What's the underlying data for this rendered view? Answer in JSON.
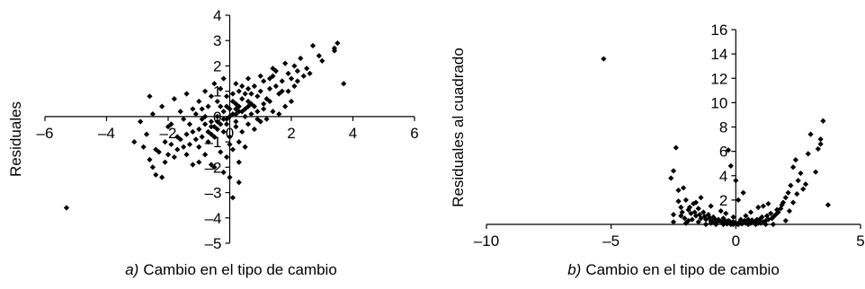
{
  "chart_data": [
    {
      "type": "scatter",
      "panel_prefix": "a)",
      "caption": "Cambio en el tipo de cambio",
      "ylabel": "Residuales",
      "xlim": [
        -6,
        6
      ],
      "ylim": [
        -5,
        4
      ],
      "x_ticks": [
        "–6",
        "–4",
        "–2",
        "0",
        "2",
        "4",
        "6"
      ],
      "y_ticks": [
        "–5",
        "–4",
        "–3",
        "–2",
        "–1",
        "0",
        "1",
        "2",
        "3",
        "4"
      ],
      "grid": false,
      "marker_color": "#000000",
      "points": [
        [
          -5.3,
          -3.6
        ],
        [
          3.7,
          1.3
        ],
        [
          3.5,
          2.9
        ],
        [
          3.4,
          2.6
        ],
        [
          3.4,
          2.7
        ],
        [
          2.7,
          2.8
        ],
        [
          3.0,
          2.2
        ],
        [
          2.3,
          2.3
        ],
        [
          2.5,
          1.9
        ],
        [
          2.2,
          1.8
        ],
        [
          1.8,
          2.1
        ],
        [
          2.0,
          1.5
        ],
        [
          2.4,
          1.6
        ],
        [
          2.1,
          1.2
        ],
        [
          1.7,
          1.4
        ],
        [
          1.5,
          1.8
        ],
        [
          1.9,
          1.0
        ],
        [
          1.3,
          1.1
        ],
        [
          1.4,
          1.6
        ],
        [
          1.6,
          0.9
        ],
        [
          1.2,
          0.7
        ],
        [
          1.0,
          1.0
        ],
        [
          1.1,
          0.5
        ],
        [
          0.9,
          0.8
        ],
        [
          0.8,
          0.4
        ],
        [
          0.7,
          0.9
        ],
        [
          0.6,
          0.6
        ],
        [
          0.5,
          0.3
        ],
        [
          0.4,
          0.7
        ],
        [
          0.3,
          0.2
        ],
        [
          0.2,
          0.5
        ],
        [
          0.1,
          0.1
        ],
        [
          0.0,
          0.3
        ],
        [
          -0.1,
          -0.1
        ],
        [
          -0.2,
          0.2
        ],
        [
          -0.3,
          -0.3
        ],
        [
          -0.4,
          0.0
        ],
        [
          -0.5,
          -0.4
        ],
        [
          -0.6,
          -0.2
        ],
        [
          -0.7,
          -0.6
        ],
        [
          -0.8,
          -0.3
        ],
        [
          -0.9,
          -0.8
        ],
        [
          -1.0,
          -0.5
        ],
        [
          -1.1,
          -0.9
        ],
        [
          -1.2,
          -0.6
        ],
        [
          -1.3,
          -1.1
        ],
        [
          -1.4,
          -0.7
        ],
        [
          -1.5,
          -1.2
        ],
        [
          -1.6,
          -0.9
        ],
        [
          -1.7,
          -1.3
        ],
        [
          -1.8,
          -1.6
        ],
        [
          -1.9,
          -1.1
        ],
        [
          -2.0,
          -1.5
        ],
        [
          -2.1,
          -1.8
        ],
        [
          -2.3,
          -1.4
        ],
        [
          -2.4,
          -2.3
        ],
        [
          -2.5,
          -2.0
        ],
        [
          -2.2,
          -2.4
        ],
        [
          -2.6,
          -1.7
        ],
        [
          -0.3,
          1.1
        ],
        [
          -0.5,
          1.3
        ],
        [
          -0.8,
          1.0
        ],
        [
          -0.2,
          1.5
        ],
        [
          0.2,
          1.3
        ],
        [
          0.4,
          1.2
        ],
        [
          -0.6,
          0.8
        ],
        [
          -1.0,
          0.6
        ],
        [
          -1.2,
          0.3
        ],
        [
          -1.4,
          0.9
        ],
        [
          -1.8,
          0.7
        ],
        [
          -1.6,
          0.2
        ],
        [
          -2.2,
          0.4
        ],
        [
          -2.5,
          0.1
        ],
        [
          -2.7,
          -0.7
        ],
        [
          -2.8,
          -1.2
        ],
        [
          -2.0,
          -0.4
        ],
        [
          -1.5,
          -0.1
        ],
        [
          -1.1,
          0.1
        ],
        [
          -0.9,
          -0.1
        ],
        [
          0.2,
          -0.4
        ],
        [
          0.4,
          -0.6
        ],
        [
          0.6,
          -0.3
        ],
        [
          0.8,
          -0.5
        ],
        [
          1.0,
          -0.2
        ],
        [
          1.2,
          -0.1
        ],
        [
          1.4,
          0.2
        ],
        [
          1.6,
          0.1
        ],
        [
          1.8,
          0.4
        ],
        [
          2.0,
          0.6
        ],
        [
          0.3,
          -1.0
        ],
        [
          0.1,
          -1.3
        ],
        [
          -0.1,
          -1.6
        ],
        [
          0.0,
          -2.4
        ],
        [
          -0.2,
          -2.2
        ],
        [
          0.1,
          -3.2
        ],
        [
          0.3,
          -1.8
        ],
        [
          0.5,
          -1.2
        ],
        [
          -0.3,
          -1.4
        ],
        [
          -0.6,
          -1.9
        ],
        [
          -0.8,
          -1.5
        ],
        [
          -1.0,
          -1.8
        ],
        [
          -1.2,
          -1.9
        ],
        [
          0.7,
          0.1
        ],
        [
          0.9,
          0.2
        ],
        [
          -0.4,
          0.6
        ],
        [
          -0.1,
          0.8
        ],
        [
          0.1,
          0.9
        ],
        [
          0.3,
          1.0
        ],
        [
          0.5,
          0.9
        ],
        [
          -0.7,
          0.4
        ],
        [
          -0.9,
          0.3
        ],
        [
          -0.2,
          -0.6
        ],
        [
          0.0,
          -0.8
        ],
        [
          0.2,
          -0.2
        ],
        [
          -0.3,
          0.4
        ],
        [
          0.6,
          1.1
        ],
        [
          0.8,
          1.2
        ],
        [
          1.1,
          1.4
        ],
        [
          1.3,
          1.5
        ],
        [
          1.5,
          1.2
        ],
        [
          1.7,
          1.0
        ],
        [
          2.2,
          1.4
        ],
        [
          2.6,
          1.7
        ],
        [
          2.9,
          2.4
        ],
        [
          1.9,
          1.7
        ],
        [
          2.1,
          2.0
        ],
        [
          -1.3,
          -0.3
        ],
        [
          -1.7,
          -0.8
        ],
        [
          -2.1,
          -1.0
        ],
        [
          -2.4,
          -1.3
        ],
        [
          -1.9,
          -0.3
        ],
        [
          -1.4,
          -1.5
        ],
        [
          -1.0,
          -1.2
        ],
        [
          -0.7,
          -1.0
        ],
        [
          -0.5,
          -0.8
        ],
        [
          0.9,
          -0.1
        ],
        [
          1.1,
          0.3
        ],
        [
          1.3,
          0.6
        ],
        [
          0.7,
          0.5
        ],
        [
          0.5,
          0.0
        ],
        [
          0.3,
          0.4
        ],
        [
          0.1,
          0.6
        ],
        [
          -0.1,
          0.4
        ],
        [
          -0.4,
          -0.5
        ],
        [
          -0.6,
          -0.7
        ],
        [
          -0.8,
          0.0
        ],
        [
          0.0,
          0.0
        ],
        [
          0.2,
          0.3
        ],
        [
          -0.2,
          -0.1
        ],
        [
          0.4,
          0.2
        ],
        [
          -0.4,
          -0.2
        ],
        [
          0.6,
          0.4
        ],
        [
          -0.6,
          -0.4
        ],
        [
          1.4,
          1.9
        ],
        [
          1.0,
          1.6
        ],
        [
          0.6,
          1.5
        ],
        [
          -2.6,
          0.8
        ],
        [
          -2.9,
          -0.2
        ],
        [
          -3.1,
          -1.0
        ],
        [
          0.3,
          -2.6
        ],
        [
          -0.5,
          -2.0
        ],
        [
          0.0,
          -1.1
        ],
        [
          -0.1,
          -0.3
        ],
        [
          0.2,
          0.1
        ]
      ]
    },
    {
      "type": "scatter",
      "panel_prefix": "b)",
      "caption": "Cambio en el tipo de cambio",
      "ylabel": "Residuales al cuadrado",
      "xlim": [
        -10,
        5
      ],
      "ylim": [
        0,
        16
      ],
      "x_ticks": [
        "–10",
        "–5",
        "0",
        "5"
      ],
      "y_ticks": [
        "2",
        "4",
        "6",
        "8",
        "10",
        "12",
        "14",
        "16"
      ],
      "grid": false,
      "marker_color": "#000000",
      "points": [
        [
          -5.3,
          13.6
        ],
        [
          3.5,
          8.5
        ],
        [
          3.4,
          7.0
        ],
        [
          3.4,
          6.6
        ],
        [
          3.0,
          7.4
        ],
        [
          3.2,
          4.3
        ],
        [
          3.7,
          1.6
        ],
        [
          2.6,
          4.2
        ],
        [
          2.5,
          3.6
        ],
        [
          2.4,
          5.3
        ],
        [
          2.3,
          4.7
        ],
        [
          2.2,
          3.2
        ],
        [
          2.1,
          2.6
        ],
        [
          2.0,
          2.2
        ],
        [
          1.9,
          1.8
        ],
        [
          1.8,
          1.3
        ],
        [
          1.7,
          1.0
        ],
        [
          1.6,
          0.8
        ],
        [
          1.5,
          0.6
        ],
        [
          1.4,
          0.9
        ],
        [
          1.3,
          0.4
        ],
        [
          1.2,
          0.3
        ],
        [
          1.1,
          0.2
        ],
        [
          1.0,
          0.5
        ],
        [
          0.9,
          0.1
        ],
        [
          0.8,
          0.3
        ],
        [
          0.7,
          0.2
        ],
        [
          0.6,
          0.1
        ],
        [
          0.5,
          0.4
        ],
        [
          0.4,
          0.1
        ],
        [
          0.3,
          0.2
        ],
        [
          0.2,
          0.1
        ],
        [
          0.1,
          0.0
        ],
        [
          0.0,
          0.1
        ],
        [
          -0.1,
          0.2
        ],
        [
          -0.2,
          0.0
        ],
        [
          -0.3,
          0.3
        ],
        [
          -0.4,
          0.1
        ],
        [
          -0.5,
          0.5
        ],
        [
          -0.6,
          0.2
        ],
        [
          -0.7,
          0.4
        ],
        [
          -0.8,
          0.1
        ],
        [
          -0.9,
          0.6
        ],
        [
          -1.0,
          0.3
        ],
        [
          -1.1,
          0.8
        ],
        [
          -1.2,
          0.4
        ],
        [
          -1.3,
          1.0
        ],
        [
          -1.4,
          0.5
        ],
        [
          -1.5,
          1.3
        ],
        [
          -1.6,
          0.7
        ],
        [
          -1.7,
          1.7
        ],
        [
          -1.8,
          0.9
        ],
        [
          -1.9,
          1.2
        ],
        [
          -2.0,
          2.0
        ],
        [
          -2.2,
          1.4
        ],
        [
          -2.4,
          6.3
        ],
        [
          -2.5,
          4.4
        ],
        [
          -2.6,
          3.8
        ],
        [
          -2.3,
          2.8
        ],
        [
          -2.1,
          3.0
        ],
        [
          -2.5,
          0.8
        ],
        [
          -2.5,
          0.2
        ],
        [
          -2.0,
          0.1
        ],
        [
          -1.5,
          0.2
        ],
        [
          -1.0,
          0.1
        ],
        [
          -0.5,
          0.0
        ],
        [
          0.5,
          0.0
        ],
        [
          1.0,
          0.1
        ],
        [
          1.5,
          0.0
        ],
        [
          2.0,
          0.3
        ],
        [
          -0.3,
          6.1
        ],
        [
          0.0,
          3.6
        ],
        [
          -0.2,
          4.8
        ],
        [
          0.3,
          2.6
        ],
        [
          0.1,
          2.0
        ],
        [
          -1.2,
          0.0
        ],
        [
          -0.8,
          0.0
        ],
        [
          0.8,
          0.0
        ],
        [
          1.2,
          0.0
        ],
        [
          0.2,
          0.4
        ],
        [
          -0.1,
          0.6
        ],
        [
          0.4,
          0.7
        ],
        [
          -0.4,
          0.9
        ],
        [
          0.6,
          1.0
        ],
        [
          -0.6,
          1.1
        ],
        [
          0.9,
          1.4
        ],
        [
          -1.0,
          1.5
        ],
        [
          1.3,
          1.7
        ],
        [
          1.1,
          1.5
        ],
        [
          -1.4,
          2.2
        ],
        [
          -1.6,
          1.8
        ],
        [
          2.8,
          3.3
        ],
        [
          2.9,
          5.8
        ],
        [
          2.7,
          2.9
        ],
        [
          -0.1,
          0.0
        ],
        [
          0.05,
          0.05
        ],
        [
          -0.05,
          0.1
        ],
        [
          0.15,
          0.2
        ],
        [
          -0.15,
          0.15
        ],
        [
          0.25,
          0.05
        ],
        [
          -0.25,
          0.25
        ],
        [
          0.35,
          0.3
        ],
        [
          -0.35,
          0.05
        ],
        [
          0.45,
          0.2
        ],
        [
          -0.45,
          0.35
        ],
        [
          0.55,
          0.25
        ],
        [
          -0.55,
          0.15
        ],
        [
          0.65,
          0.35
        ],
        [
          -0.65,
          0.3
        ],
        [
          0.75,
          0.1
        ],
        [
          -0.75,
          0.2
        ],
        [
          0.85,
          0.4
        ],
        [
          -0.85,
          0.45
        ],
        [
          0.95,
          0.3
        ],
        [
          -0.95,
          0.2
        ],
        [
          1.05,
          0.6
        ],
        [
          -1.05,
          0.55
        ],
        [
          1.25,
          0.7
        ],
        [
          -1.25,
          0.65
        ],
        [
          1.45,
          0.5
        ],
        [
          -1.45,
          0.8
        ],
        [
          1.65,
          1.2
        ],
        [
          -1.65,
          1.0
        ],
        [
          1.85,
          1.6
        ],
        [
          -1.85,
          1.4
        ],
        [
          -2.05,
          0.5
        ],
        [
          -2.15,
          1.0
        ],
        [
          -2.3,
          1.9
        ],
        [
          -1.9,
          0.3
        ],
        [
          -1.75,
          0.4
        ],
        [
          -2.2,
          0.7
        ],
        [
          2.15,
          1.1
        ],
        [
          2.3,
          1.8
        ],
        [
          2.45,
          2.5
        ],
        [
          3.3,
          6.2
        ]
      ]
    }
  ]
}
